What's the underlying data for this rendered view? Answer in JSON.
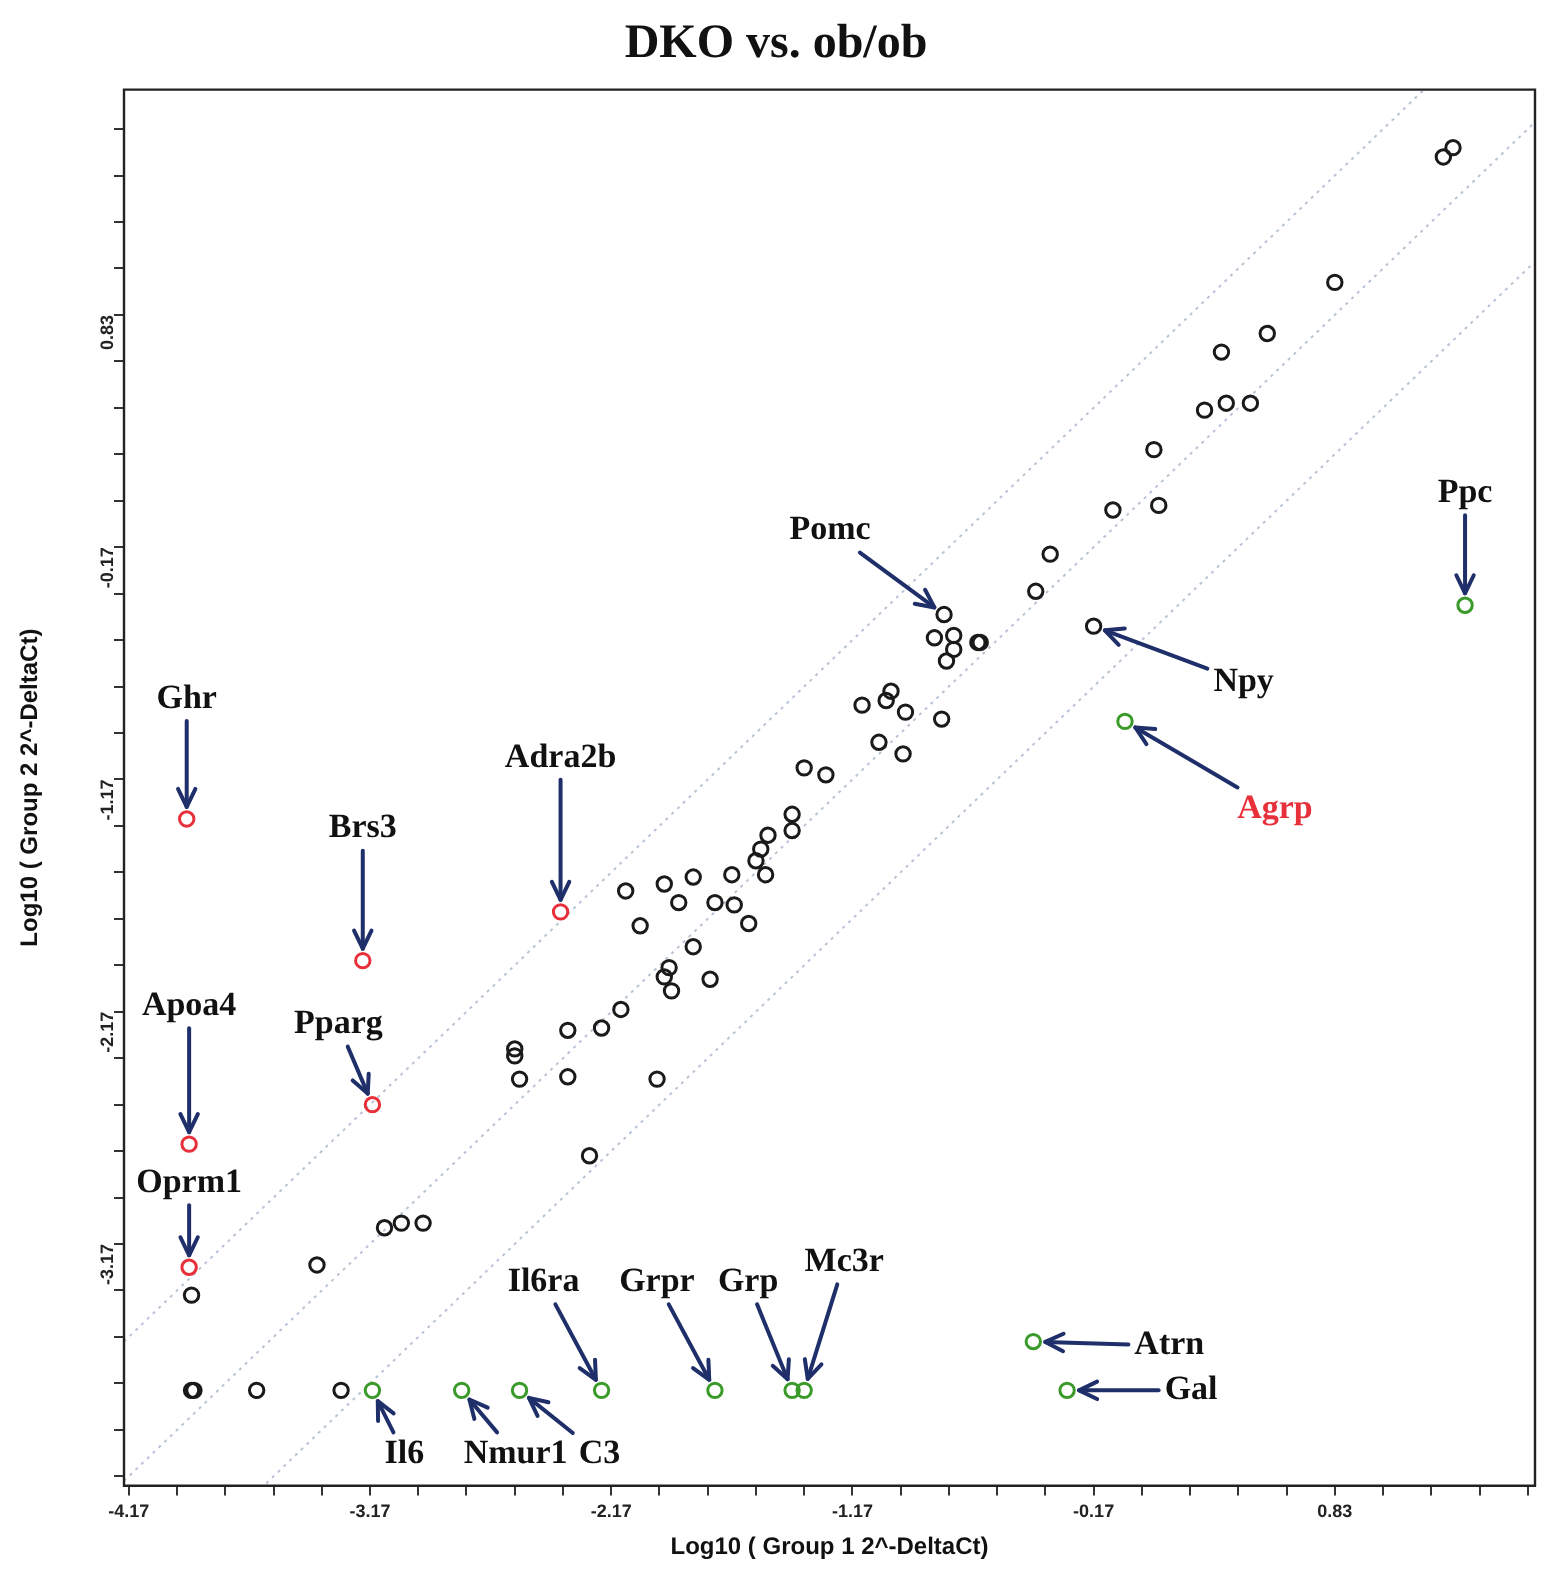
{
  "chart_data": {
    "type": "scatter",
    "title": "DKO vs. ob/ob",
    "xlabel": "Log10 ( Group 1 2^-DeltaCt)",
    "ylabel": "Log10 ( Group 2 2^-DeltaCt)",
    "xlim": [
      -4.19,
      1.66
    ],
    "ylim": [
      -4.21,
      1.8
    ],
    "xticks": [
      -4.17,
      {
        "value": -3.97,
        "label": null
      },
      {
        "value": -3.77,
        "label": null
      },
      {
        "value": -3.57,
        "label": null
      },
      {
        "value": -3.37,
        "label": null
      },
      -3.17,
      {
        "value": -2.97,
        "label": null
      },
      {
        "value": -2.77,
        "label": null
      },
      {
        "value": -2.57,
        "label": null
      },
      {
        "value": -2.37,
        "label": null
      },
      -2.17,
      {
        "value": -1.97,
        "label": null
      },
      {
        "value": -1.77,
        "label": null
      },
      {
        "value": -1.57,
        "label": null
      },
      {
        "value": -1.37,
        "label": null
      },
      -1.17,
      {
        "value": -0.97,
        "label": null
      },
      {
        "value": -0.77,
        "label": null
      },
      {
        "value": -0.57,
        "label": null
      },
      {
        "value": -0.37,
        "label": null
      },
      -0.17,
      {
        "value": 0.03,
        "label": null
      },
      {
        "value": 0.23,
        "label": null
      },
      {
        "value": 0.43,
        "label": null
      },
      {
        "value": 0.63,
        "label": null
      },
      0.83,
      {
        "value": 1.03,
        "label": null
      },
      {
        "value": 1.23,
        "label": null
      },
      {
        "value": 1.43,
        "label": null
      },
      {
        "value": 1.63,
        "label": null
      }
    ],
    "yticks": [
      {
        "value": -4.17,
        "label": null
      },
      {
        "value": -3.97,
        "label": null
      },
      {
        "value": -3.77,
        "label": null
      },
      {
        "value": -3.57,
        "label": null
      },
      {
        "value": -3.37,
        "label": null
      },
      -3.17,
      {
        "value": -2.97,
        "label": null
      },
      {
        "value": -2.77,
        "label": null
      },
      {
        "value": -2.57,
        "label": null
      },
      {
        "value": -2.37,
        "label": null
      },
      -2.17,
      {
        "value": -1.97,
        "label": null
      },
      {
        "value": -1.77,
        "label": null
      },
      {
        "value": -1.57,
        "label": null
      },
      {
        "value": -1.37,
        "label": null
      },
      -1.17,
      {
        "value": -0.97,
        "label": null
      },
      {
        "value": -0.77,
        "label": null
      },
      {
        "value": -0.57,
        "label": null
      },
      {
        "value": -0.37,
        "label": null
      },
      -0.17,
      {
        "value": 0.03,
        "label": null
      },
      {
        "value": 0.23,
        "label": null
      },
      {
        "value": 0.43,
        "label": null
      },
      {
        "value": 0.63,
        "label": null
      },
      0.83,
      {
        "value": 1.03,
        "label": null
      },
      {
        "value": 1.23,
        "label": null
      },
      {
        "value": 1.43,
        "label": null
      },
      {
        "value": 1.63,
        "label": null
      }
    ],
    "grid": false,
    "legend": false,
    "marker": "circle",
    "series": [
      {
        "type": "line",
        "marker": "none",
        "line_style": "dotted",
        "color": "#b8c4d4",
        "x": [
          -4.19,
          1.2
        ],
        "values": [
          -3.59,
          1.8
        ]
      },
      {
        "type": "line",
        "marker": "none",
        "line_style": "dotted",
        "color": "#b8c4d4",
        "x": [
          -4.19,
          1.66
        ],
        "values": [
          -4.19,
          1.66
        ]
      },
      {
        "type": "line",
        "marker": "none",
        "line_style": "dotted",
        "color": "#b8c4d4",
        "x": [
          -3.6,
          1.66
        ],
        "values": [
          -4.2,
          1.06
        ]
      },
      {
        "color": "#1a1a1a",
        "x": [
          1.28,
          1.32,
          0.83,
          0.55,
          0.36,
          0.29,
          0.38,
          0.48,
          0.08,
          0.1,
          -0.09,
          -0.35,
          -0.41,
          -0.17,
          -0.79,
          -0.83,
          -0.75,
          -0.75,
          -0.78,
          -0.65,
          -0.64,
          -1.13,
          -1.03,
          -1.01,
          -0.95,
          -0.8,
          -1.06,
          -0.96,
          -1.37,
          -1.28,
          -1.42,
          -1.42,
          -1.52,
          -1.55,
          -1.57,
          -1.53,
          -1.67,
          -1.6,
          -1.66,
          -1.74,
          -1.83,
          -1.89,
          -1.95,
          -2.11,
          -2.05,
          -1.83,
          -1.93,
          -1.95,
          -1.92,
          -1.76,
          -2.13,
          -2.21,
          -2.35,
          -2.57,
          -2.57,
          -2.55,
          -2.35,
          -1.98,
          -2.26,
          -3.11,
          -3.04,
          -2.95,
          -3.39,
          -3.91,
          -3.91,
          -3.9,
          -3.64,
          -3.29
        ],
        "values": [
          1.51,
          1.55,
          0.97,
          0.75,
          0.67,
          0.42,
          0.45,
          0.45,
          0.25,
          0.01,
          -0.01,
          -0.2,
          -0.36,
          -0.51,
          -0.46,
          -0.56,
          -0.55,
          -0.61,
          -0.66,
          -0.58,
          -0.58,
          -0.85,
          -0.83,
          -0.79,
          -0.88,
          -0.91,
          -1.01,
          -1.06,
          -1.12,
          -1.15,
          -1.32,
          -1.39,
          -1.41,
          -1.47,
          -1.52,
          -1.58,
          -1.58,
          -1.79,
          -1.71,
          -1.7,
          -1.59,
          -1.7,
          -1.62,
          -1.65,
          -1.8,
          -1.89,
          -1.98,
          -2.02,
          -2.08,
          -2.03,
          -2.16,
          -2.24,
          -2.25,
          -2.33,
          -2.36,
          -2.46,
          -2.45,
          -2.46,
          -2.79,
          -3.1,
          -3.08,
          -3.08,
          -3.26,
          -3.39,
          -3.8,
          -3.8,
          -3.8,
          -3.8
        ]
      },
      {
        "color": "#e8303a",
        "x": [
          -3.93,
          -3.2,
          -2.38,
          -3.92,
          -3.16,
          -3.92
        ],
        "values": [
          -1.34,
          -1.95,
          -1.74,
          -2.74,
          -2.57,
          -3.27
        ]
      },
      {
        "color": "#3a9a2a",
        "x": [
          1.37,
          -0.04,
          -0.42,
          -0.28,
          -3.16,
          -2.79,
          -2.55,
          -2.21,
          -1.74,
          -1.42,
          -1.37
        ],
        "values": [
          -0.42,
          -0.92,
          -3.59,
          -3.8,
          -3.8,
          -3.8,
          -3.8,
          -3.8,
          -3.8,
          -3.8,
          -3.8
        ]
      }
    ],
    "annotations": [
      {
        "text": "Ghr",
        "x": -3.93,
        "y": -1.34
      },
      {
        "text": "Brs3",
        "x": -3.2,
        "y": -1.95
      },
      {
        "text": "Adra2b",
        "x": -2.38,
        "y": -1.74
      },
      {
        "text": "Apoa4",
        "x": -3.92,
        "y": -2.74
      },
      {
        "text": "Pparg",
        "x": -3.16,
        "y": -2.57
      },
      {
        "text": "Oprm1",
        "x": -3.92,
        "y": -3.27
      },
      {
        "text": "Ppc",
        "x": 1.37,
        "y": -0.42
      },
      {
        "text": "Agrp",
        "x": -0.04,
        "y": -0.92
      },
      {
        "text": "Atrn",
        "x": -0.42,
        "y": -3.59
      },
      {
        "text": "Gal",
        "x": -0.28,
        "y": -3.8
      },
      {
        "text": "Il6",
        "x": -3.16,
        "y": -3.8
      },
      {
        "text": "Nmur1",
        "x": -2.79,
        "y": -3.8
      },
      {
        "text": "C3",
        "x": -2.55,
        "y": -3.8
      },
      {
        "text": "Il6ra",
        "x": -2.21,
        "y": -3.8
      },
      {
        "text": "Grpr",
        "x": -1.74,
        "y": -3.8
      },
      {
        "text": "Grp",
        "x": -1.42,
        "y": -3.8
      },
      {
        "text": "Mc3r",
        "x": -1.37,
        "y": -3.8
      },
      {
        "text": "Npy",
        "x": -0.17,
        "y": -0.51
      },
      {
        "text": "Pomc",
        "x": -0.79,
        "y": -0.46
      }
    ]
  }
}
